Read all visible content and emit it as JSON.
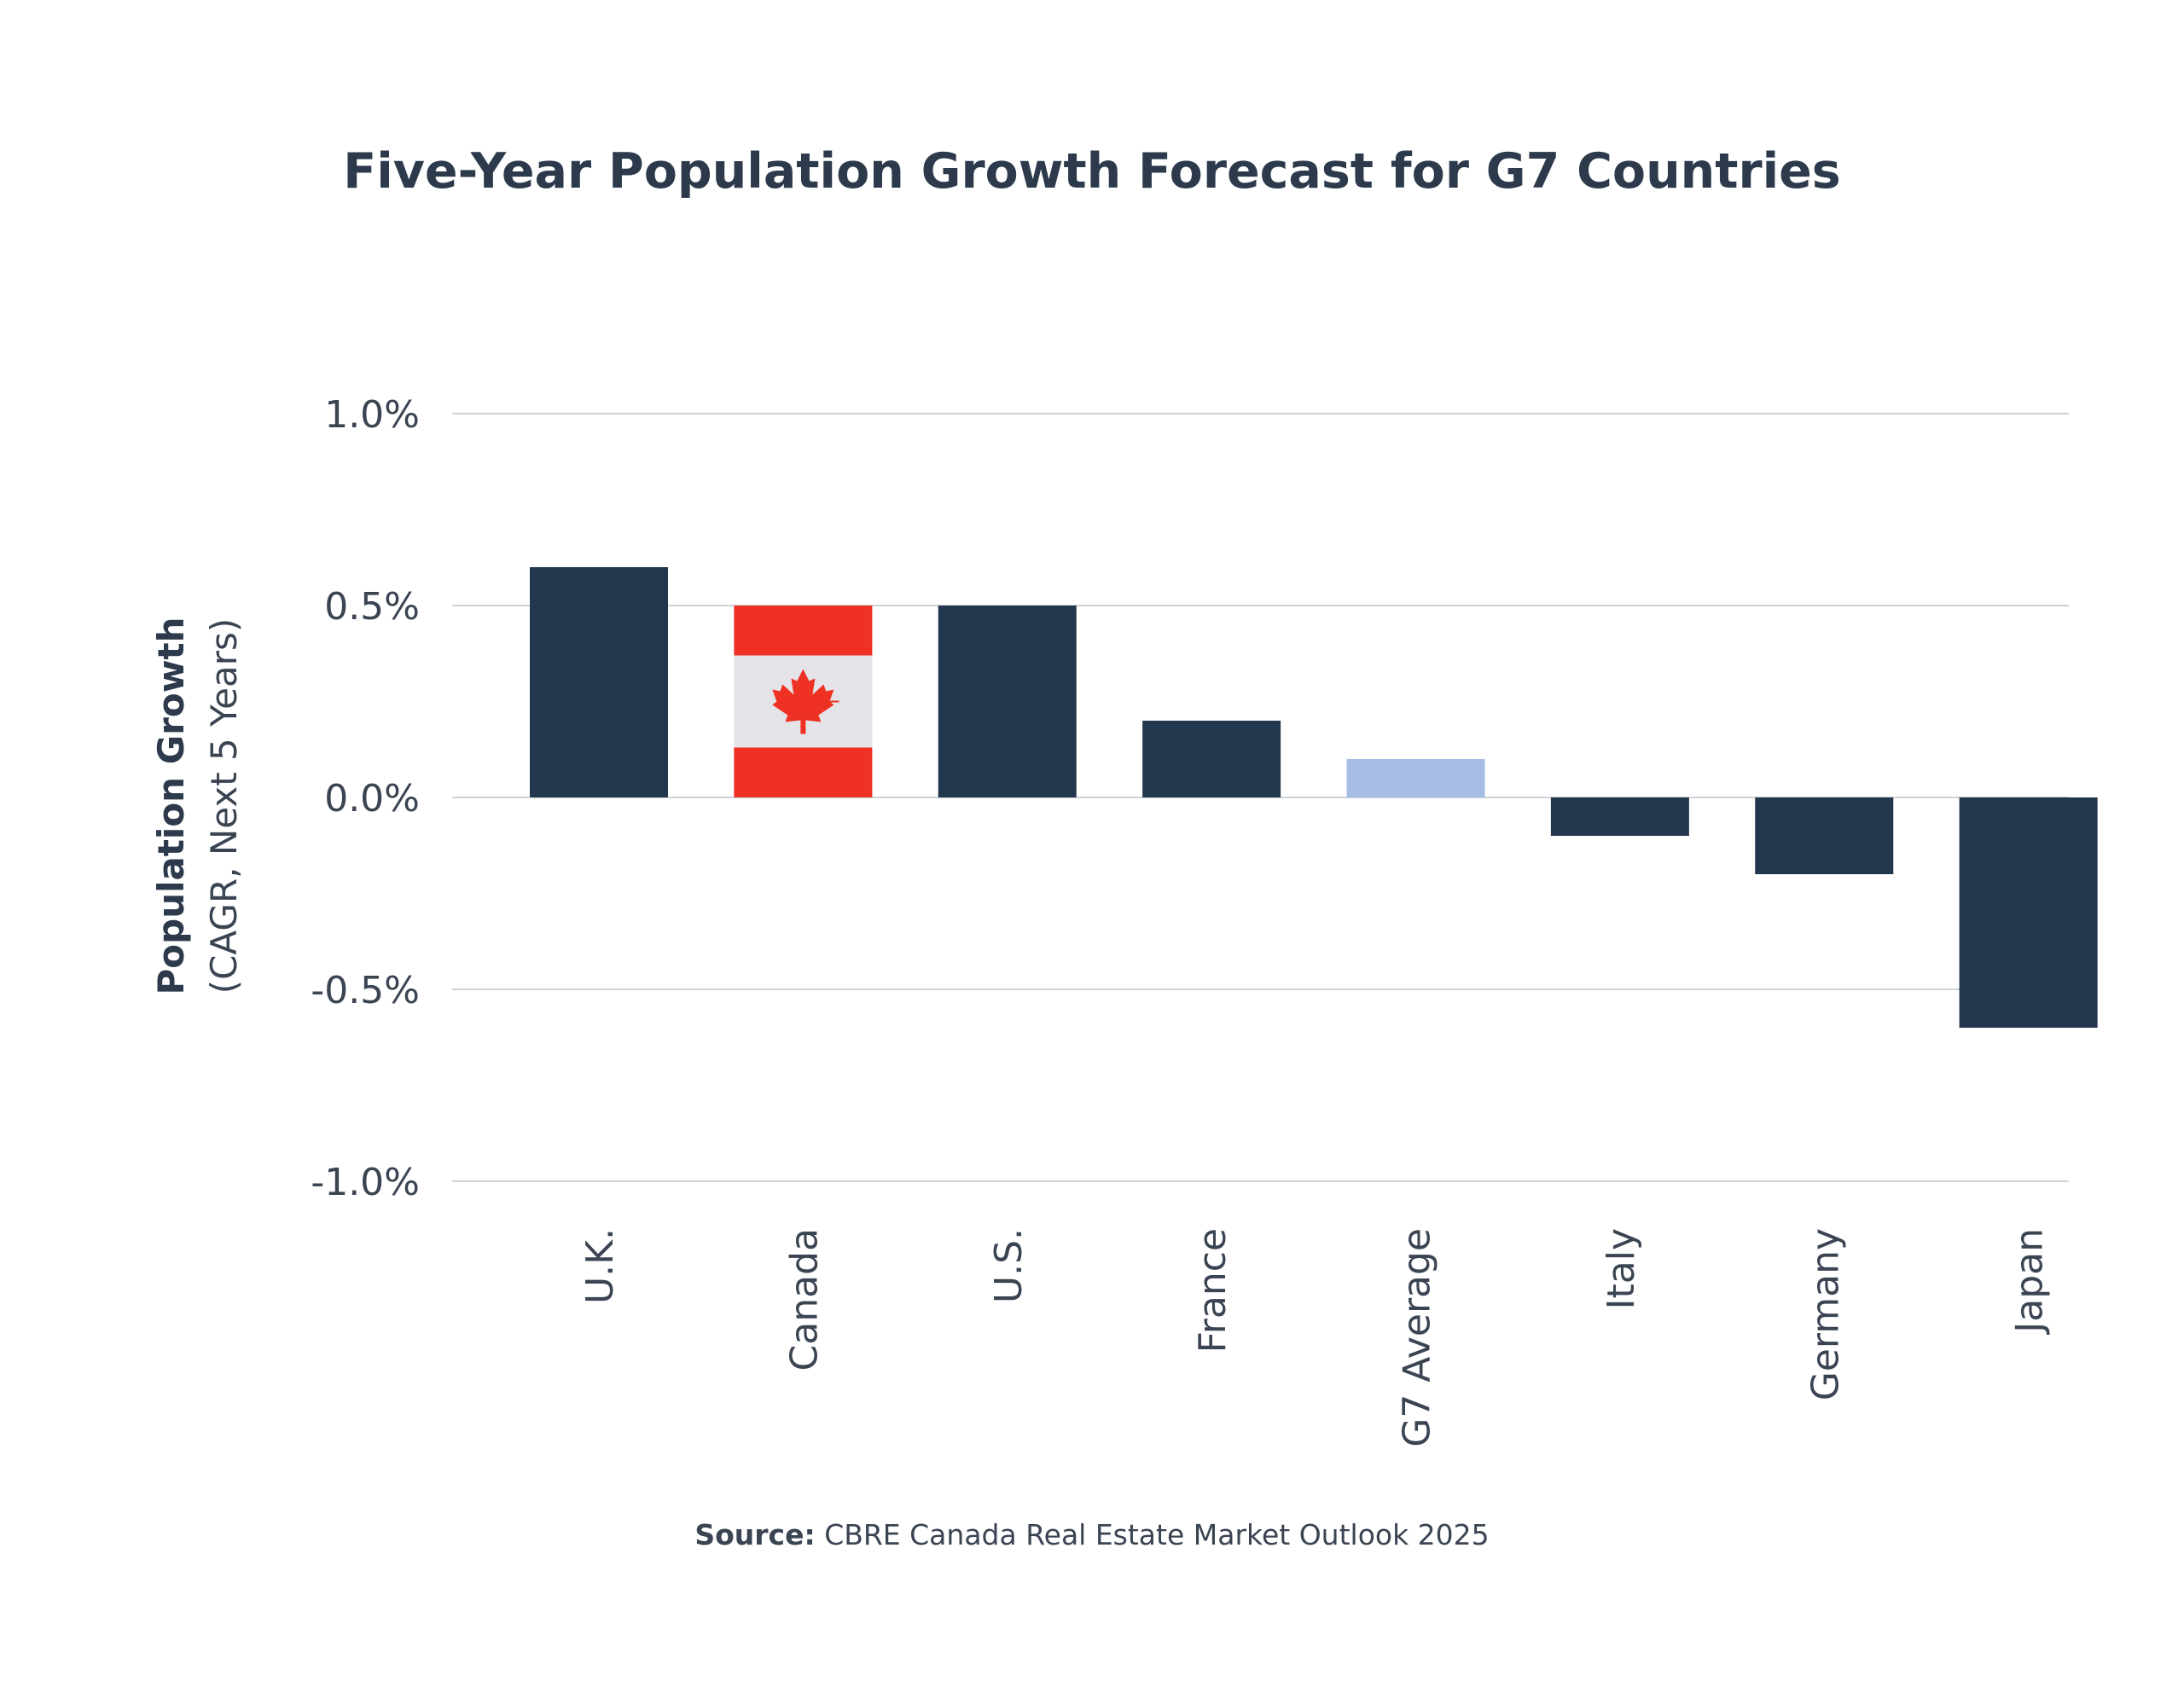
{
  "source": {
    "label": "Source:",
    "text": "CBRE Canada Real Estate Market Outlook 2025"
  },
  "colors": {
    "bar": "#22374d",
    "g7_average": "#a6bde3",
    "flag_red": "#ef3124",
    "flag_white": "#e3e3e8",
    "grid": "#cfd3d8",
    "text": "#3a4452"
  },
  "chart_data": {
    "type": "bar",
    "title": "Five-Year Population Growth Forecast for G7 Countries",
    "ylabel": "Population Growth",
    "ylabel_sub": "(CAGR, Next 5 Years)",
    "xlabel": "",
    "categories": [
      "U.K.",
      "Canada",
      "U.S.",
      "France",
      "G7 Average",
      "Italy",
      "Germany",
      "Japan"
    ],
    "values": [
      0.6,
      0.5,
      0.5,
      0.2,
      0.1,
      -0.1,
      -0.2,
      -0.6
    ],
    "ylim": [
      -1.0,
      1.0
    ],
    "yticks": [
      1.0,
      0.5,
      0.0,
      -0.5,
      -1.0
    ],
    "ytick_labels": [
      "1.0%",
      "0.5%",
      "0.0%",
      "-0.5%",
      "-1.0%"
    ],
    "grid": true,
    "legend": "none",
    "bar_styles": [
      "solid",
      "canada-flag",
      "solid",
      "solid",
      "highlight",
      "solid",
      "solid",
      "solid"
    ]
  }
}
